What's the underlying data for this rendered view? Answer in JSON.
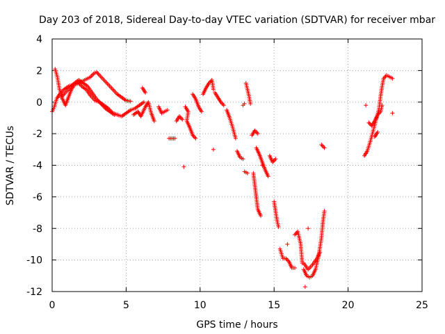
{
  "chart_data": {
    "type": "scatter",
    "title": "Day 203 of 2018, Sidereal Day-to-day VTEC variation (SDTVAR) for receiver mbar",
    "xlabel": "GPS time / hours",
    "ylabel": "SDTVAR / TECUs",
    "xlim": [
      0,
      25
    ],
    "ylim": [
      -12,
      4
    ],
    "xticks": [
      "0",
      "5",
      "10",
      "15",
      "20",
      "25"
    ],
    "yticks": [
      "4",
      "2",
      "0",
      "-2",
      "-4",
      "-6",
      "-8",
      "-10",
      "-12"
    ],
    "grid": true,
    "marker": "+",
    "color": "#ff0000",
    "segments": [
      [
        [
          0.0,
          -0.6
        ],
        [
          0.15,
          -0.3
        ],
        [
          0.3,
          0.2
        ],
        [
          0.5,
          0.5
        ],
        [
          0.8,
          0.8
        ],
        [
          1.1,
          1.0
        ],
        [
          1.4,
          1.1
        ],
        [
          1.7,
          1.2
        ],
        [
          2.0,
          1.3
        ],
        [
          2.3,
          1.45
        ],
        [
          2.6,
          1.6
        ],
        [
          2.8,
          1.8
        ],
        [
          3.0,
          1.9
        ],
        [
          3.2,
          1.7
        ],
        [
          3.5,
          1.4
        ],
        [
          3.8,
          1.1
        ],
        [
          4.1,
          0.8
        ],
        [
          4.4,
          0.5
        ],
        [
          4.7,
          0.3
        ],
        [
          5.0,
          0.1
        ],
        [
          5.3,
          0.05
        ]
      ],
      [
        [
          0.2,
          2.1
        ],
        [
          0.35,
          1.6
        ],
        [
          0.5,
          0.8
        ],
        [
          0.7,
          0.2
        ],
        [
          0.9,
          -0.2
        ],
        [
          1.1,
          0.3
        ],
        [
          1.3,
          0.8
        ],
        [
          1.5,
          1.1
        ],
        [
          1.8,
          1.2
        ],
        [
          2.0,
          1.0
        ],
        [
          2.3,
          0.8
        ],
        [
          2.6,
          0.4
        ],
        [
          2.9,
          0.1
        ],
        [
          3.2,
          0.0
        ],
        [
          3.5,
          -0.2
        ],
        [
          3.8,
          -0.4
        ],
        [
          4.1,
          -0.7
        ],
        [
          4.4,
          -0.8
        ],
        [
          4.7,
          -0.9
        ],
        [
          5.0,
          -0.7
        ],
        [
          5.3,
          -0.5
        ],
        [
          5.6,
          -0.4
        ],
        [
          5.9,
          -0.2
        ],
        [
          6.2,
          0.0
        ]
      ],
      [
        [
          0.6,
          0.3
        ],
        [
          0.9,
          0.6
        ],
        [
          1.2,
          0.9
        ],
        [
          1.5,
          1.2
        ],
        [
          1.8,
          1.4
        ],
        [
          2.1,
          1.2
        ],
        [
          2.4,
          1.0
        ],
        [
          2.7,
          0.6
        ],
        [
          3.0,
          0.2
        ],
        [
          3.3,
          -0.1
        ],
        [
          3.6,
          -0.4
        ],
        [
          3.9,
          -0.6
        ],
        [
          4.2,
          -0.8
        ]
      ],
      [
        [
          5.5,
          -0.8
        ],
        [
          5.8,
          -0.6
        ],
        [
          6.0,
          -0.9
        ],
        [
          6.3,
          -0.3
        ],
        [
          6.5,
          0.0
        ],
        [
          6.7,
          -0.7
        ],
        [
          6.9,
          -1.2
        ]
      ],
      [
        [
          6.1,
          0.9
        ],
        [
          6.3,
          0.6
        ]
      ],
      [
        [
          7.2,
          -0.3
        ],
        [
          7.4,
          -0.7
        ],
        [
          7.8,
          -0.5
        ]
      ],
      [
        [
          7.9,
          -2.3
        ],
        [
          8.3,
          -2.3
        ]
      ],
      [
        [
          8.4,
          -1.2
        ],
        [
          8.6,
          -0.9
        ],
        [
          8.8,
          -1.1
        ]
      ],
      [
        [
          9.0,
          -0.3
        ],
        [
          9.2,
          -0.6
        ],
        [
          9.1,
          -1.2
        ],
        [
          9.3,
          -1.6
        ],
        [
          9.5,
          -2.1
        ],
        [
          9.7,
          -2.3
        ]
      ],
      [
        [
          8.9,
          -4.1
        ]
      ],
      [
        [
          9.5,
          0.5
        ],
        [
          9.7,
          0.2
        ],
        [
          9.9,
          -0.3
        ],
        [
          10.1,
          -0.6
        ]
      ],
      [
        [
          10.2,
          0.5
        ],
        [
          10.4,
          0.9
        ],
        [
          10.6,
          1.2
        ],
        [
          10.8,
          1.4
        ],
        [
          10.9,
          0.8
        ]
      ],
      [
        [
          10.9,
          -3.0
        ]
      ],
      [
        [
          11.0,
          0.6
        ],
        [
          11.2,
          0.3
        ],
        [
          11.4,
          0.0
        ],
        [
          11.6,
          -0.2
        ]
      ],
      [
        [
          11.8,
          -0.5
        ],
        [
          12.0,
          -1.0
        ],
        [
          12.2,
          -1.6
        ],
        [
          12.4,
          -2.3
        ]
      ],
      [
        [
          12.5,
          -3.1
        ],
        [
          12.7,
          -3.5
        ],
        [
          12.9,
          -3.6
        ]
      ],
      [
        [
          12.9,
          -0.2
        ],
        [
          13.0,
          -0.1
        ]
      ],
      [
        [
          13.1,
          1.2
        ],
        [
          13.2,
          0.8
        ],
        [
          13.3,
          0.4
        ],
        [
          13.4,
          -0.1
        ]
      ],
      [
        [
          13.0,
          -4.4
        ],
        [
          13.2,
          -4.5
        ]
      ],
      [
        [
          13.5,
          -2.1
        ],
        [
          13.7,
          -1.8
        ],
        [
          13.9,
          -2.0
        ]
      ],
      [
        [
          13.8,
          -2.9
        ],
        [
          14.0,
          -3.3
        ],
        [
          14.2,
          -3.8
        ],
        [
          14.4,
          -4.3
        ],
        [
          14.6,
          -4.7
        ]
      ],
      [
        [
          13.6,
          -4.5
        ],
        [
          13.9,
          -6.8
        ],
        [
          14.1,
          -7.2
        ]
      ],
      [
        [
          14.2,
          -4.0
        ]
      ],
      [
        [
          14.7,
          -3.4
        ],
        [
          14.9,
          -3.8
        ],
        [
          15.1,
          -3.6
        ]
      ],
      [
        [
          15.0,
          -6.3
        ],
        [
          15.1,
          -6.9
        ],
        [
          15.2,
          -7.5
        ],
        [
          15.3,
          -7.9
        ]
      ],
      [
        [
          15.4,
          -9.3
        ],
        [
          15.6,
          -9.9
        ],
        [
          15.8,
          -9.9
        ],
        [
          16.0,
          -10.1
        ],
        [
          16.2,
          -10.5
        ],
        [
          16.4,
          -10.5
        ]
      ],
      [
        [
          15.9,
          -9.0
        ]
      ],
      [
        [
          16.4,
          -8.4
        ],
        [
          16.6,
          -8.2
        ],
        [
          16.8,
          -9.0
        ],
        [
          16.9,
          -10.2
        ]
      ],
      [
        [
          17.0,
          -10.6
        ],
        [
          17.2,
          -11.0
        ],
        [
          17.4,
          -11.1
        ],
        [
          17.6,
          -11.0
        ],
        [
          17.8,
          -10.6
        ],
        [
          18.0,
          -9.8
        ],
        [
          18.1,
          -9.2
        ],
        [
          18.2,
          -8.6
        ],
        [
          18.3,
          -7.6
        ],
        [
          18.4,
          -6.9
        ]
      ],
      [
        [
          17.0,
          -10.2
        ],
        [
          17.3,
          -10.6
        ],
        [
          17.6,
          -10.3
        ],
        [
          17.9,
          -9.9
        ],
        [
          18.1,
          -9.5
        ]
      ],
      [
        [
          17.1,
          -11.7
        ]
      ],
      [
        [
          17.3,
          -8.0
        ]
      ],
      [
        [
          18.2,
          -2.7
        ],
        [
          18.4,
          -2.9
        ]
      ],
      [
        [
          21.1,
          -3.4
        ],
        [
          21.3,
          -3.1
        ],
        [
          21.5,
          -2.5
        ],
        [
          21.7,
          -1.8
        ],
        [
          21.9,
          -1.1
        ],
        [
          22.1,
          -0.4
        ],
        [
          22.2,
          0.4
        ],
        [
          22.3,
          1.0
        ],
        [
          22.4,
          1.5
        ],
        [
          22.6,
          1.7
        ],
        [
          22.8,
          1.6
        ],
        [
          23.0,
          1.5
        ]
      ],
      [
        [
          21.2,
          -0.2
        ]
      ],
      [
        [
          21.4,
          -1.3
        ],
        [
          21.6,
          -1.5
        ],
        [
          21.8,
          -1.2
        ],
        [
          22.0,
          -0.8
        ],
        [
          22.2,
          -0.6
        ],
        [
          22.3,
          -0.2
        ]
      ],
      [
        [
          21.8,
          -2.2
        ],
        [
          22.0,
          -1.9
        ]
      ],
      [
        [
          23.0,
          -0.7
        ]
      ]
    ]
  }
}
